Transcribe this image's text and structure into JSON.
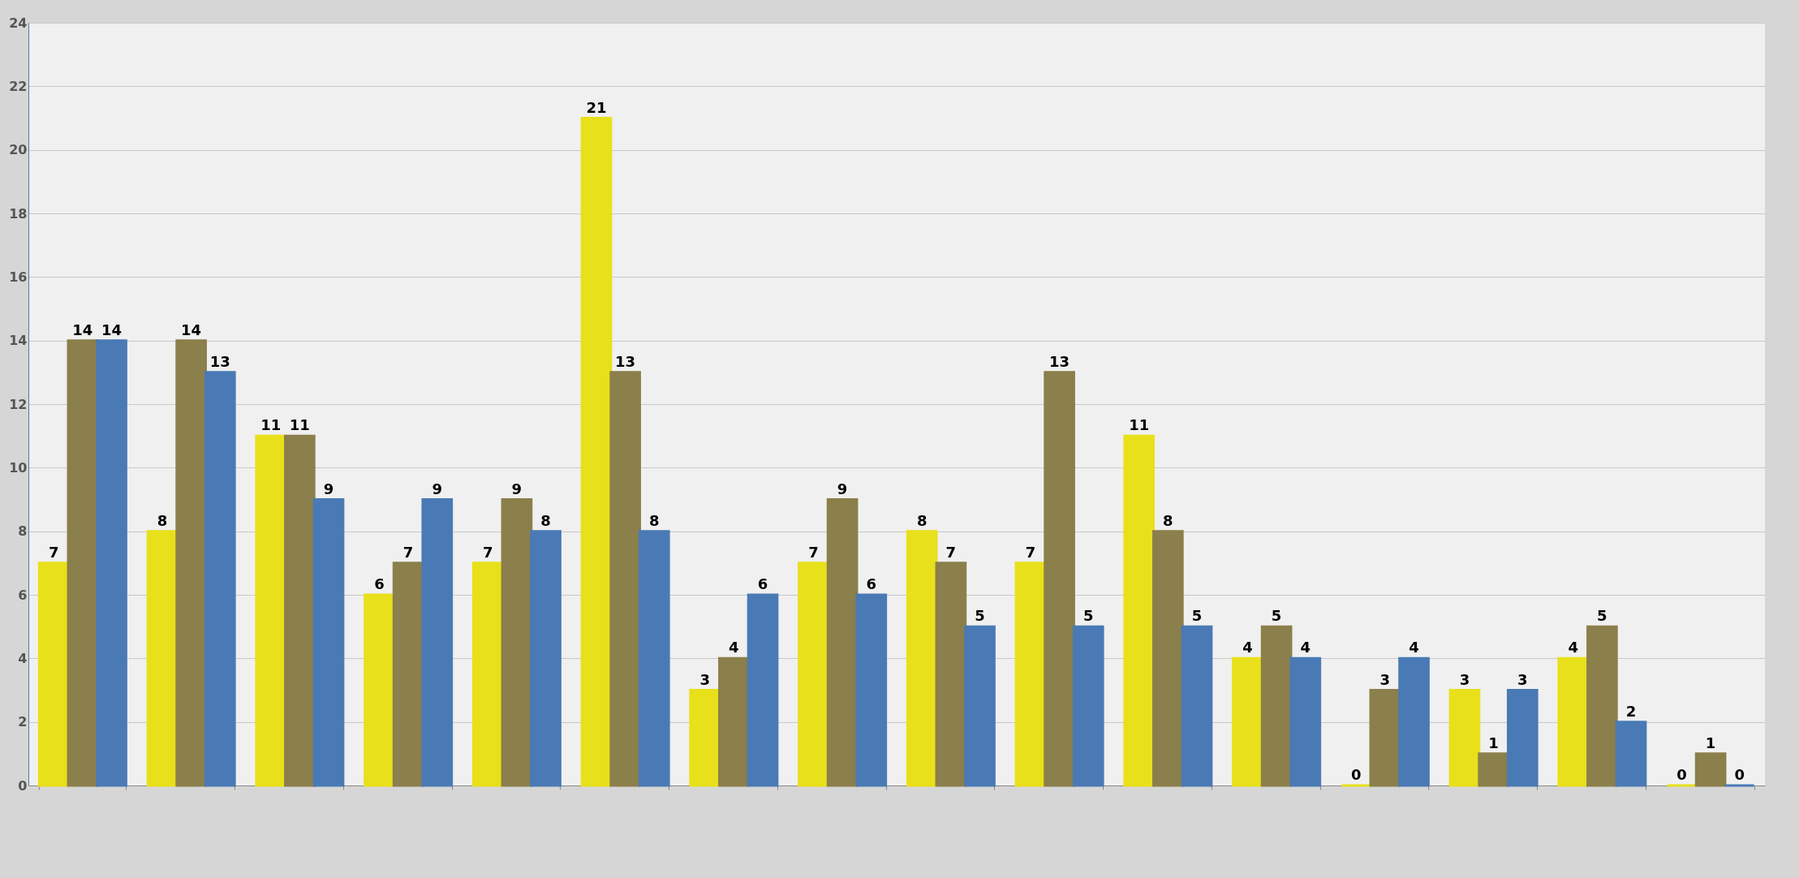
{
  "chart_data": {
    "type": "bar",
    "categories": [
      null,
      null,
      null,
      null,
      null,
      null,
      null,
      null,
      null,
      null,
      null,
      null,
      null,
      null,
      null,
      null
    ],
    "series": [
      {
        "color": "#e8e01a",
        "values": [
          7,
          8,
          11,
          6,
          7,
          21,
          3,
          7,
          8,
          7,
          11,
          4,
          0,
          3,
          4,
          0
        ]
      },
      {
        "color": "#8b7f4b",
        "values": [
          14,
          14,
          11,
          7,
          9,
          13,
          4,
          9,
          7,
          13,
          8,
          5,
          3,
          1,
          5,
          1
        ]
      },
      {
        "color": "#4a7ab5",
        "values": [
          14,
          13,
          9,
          9,
          8,
          8,
          6,
          6,
          5,
          5,
          5,
          4,
          4,
          3,
          2,
          0
        ]
      }
    ],
    "ylim": [
      0,
      24
    ],
    "yticks": [
      0,
      2,
      4,
      6,
      8,
      10,
      12,
      14,
      16,
      18,
      20,
      22,
      24
    ],
    "grid": "y",
    "data_labels": true,
    "tick_labels": "y",
    "legend": false
  }
}
